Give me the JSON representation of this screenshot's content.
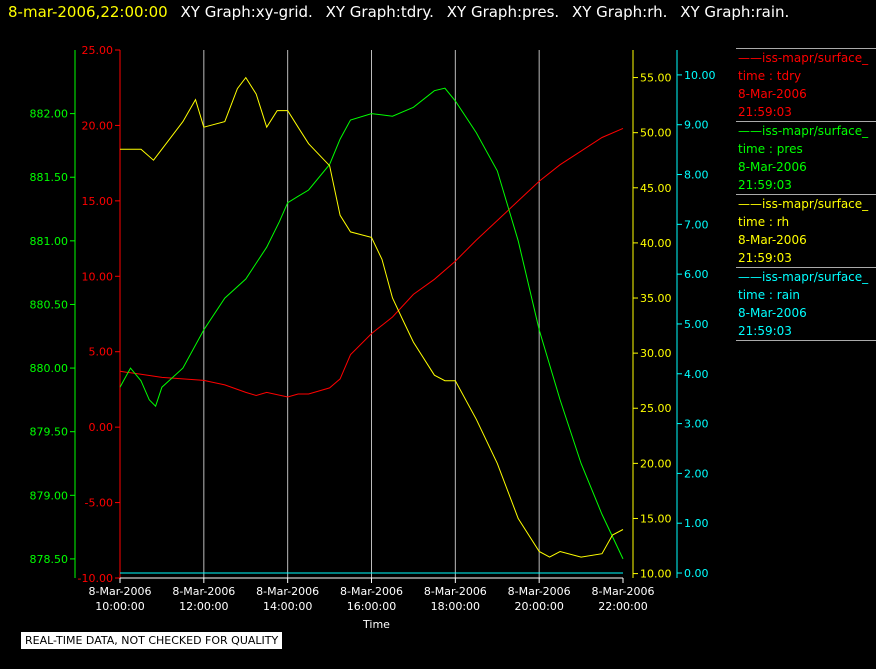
{
  "header": {
    "timestamp": "8-mar-2006,22:00:00",
    "titles": [
      "XY Graph:xy-grid.",
      "XY Graph:tdry.",
      "XY Graph:pres.",
      "XY Graph:rh.",
      "XY Graph:rain."
    ]
  },
  "legend": [
    {
      "name": "iss-mapr/surface_",
      "variable": "time : tdry",
      "date": "8-Mar-2006",
      "time": "21:59:03",
      "color": "#ff0000"
    },
    {
      "name": "iss-mapr/surface_",
      "variable": "time : pres",
      "date": "8-Mar-2006",
      "time": "21:59:03",
      "color": "#00ff00"
    },
    {
      "name": "iss-mapr/surface_",
      "variable": "time : rh",
      "date": "8-Mar-2006",
      "time": "21:59:03",
      "color": "#ffff00"
    },
    {
      "name": "iss-mapr/surface_",
      "variable": "time : rain",
      "date": "8-Mar-2006",
      "time": "21:59:03",
      "color": "#00ffff"
    }
  ],
  "footer": {
    "quality_note": "REAL-TIME DATA, NOT CHECKED FOR QUALITY"
  },
  "chart_data": {
    "type": "line",
    "xlabel": "Time",
    "x_ticks": [
      {
        "date": "8-Mar-2006",
        "time": "10:00:00",
        "hour": 10
      },
      {
        "date": "8-Mar-2006",
        "time": "12:00:00",
        "hour": 12
      },
      {
        "date": "8-Mar-2006",
        "time": "14:00:00",
        "hour": 14
      },
      {
        "date": "8-Mar-2006",
        "time": "16:00:00",
        "hour": 16
      },
      {
        "date": "8-Mar-2006",
        "time": "18:00:00",
        "hour": 18
      },
      {
        "date": "8-Mar-2006",
        "time": "20:00:00",
        "hour": 20
      },
      {
        "date": "8-Mar-2006",
        "time": "22:00:00",
        "hour": 22
      }
    ],
    "xlim_hours": [
      10,
      22
    ],
    "grid_x": true,
    "axes": {
      "tdry": {
        "color": "#ff0000",
        "ylim": [
          -10,
          25
        ],
        "ticks": [
          "25.00",
          "20.00",
          "15.00",
          "10.00",
          "5.00",
          "0.00",
          "-5.00",
          "-10.00"
        ]
      },
      "pres": {
        "color": "#00ff00",
        "ylim": [
          878.35,
          882.5
        ],
        "ticks": [
          "882.00",
          "881.50",
          "881.00",
          "880.50",
          "880.00",
          "879.50",
          "879.00",
          "878.50"
        ]
      },
      "rh": {
        "color": "#ffff00",
        "ylim": [
          9.6,
          57.5
        ],
        "ticks": [
          "55.00",
          "50.00",
          "45.00",
          "40.00",
          "35.00",
          "30.00",
          "25.00",
          "20.00",
          "15.00",
          "10.00"
        ]
      },
      "rain": {
        "color": "#00ffff",
        "ylim": [
          -0.1,
          10.5
        ],
        "ticks": [
          "10.00",
          "9.00",
          "8.00",
          "7.00",
          "6.00",
          "5.00",
          "4.00",
          "3.00",
          "2.00",
          "1.00",
          "0.00"
        ]
      }
    },
    "series": [
      {
        "name": "tdry",
        "axis": "tdry",
        "color": "#ff0000",
        "x": [
          10,
          10.5,
          11,
          11.5,
          12,
          12.5,
          13,
          13.25,
          13.5,
          14,
          14.25,
          14.5,
          15,
          15.25,
          15.5,
          16,
          16.5,
          17,
          17.5,
          18,
          18.5,
          19,
          19.5,
          20,
          20.5,
          21,
          21.5,
          22
        ],
        "y": [
          3.7,
          3.5,
          3.3,
          3.2,
          3.1,
          2.8,
          2.3,
          2.1,
          2.3,
          2.0,
          2.2,
          2.2,
          2.6,
          3.2,
          4.8,
          6.2,
          7.3,
          8.8,
          9.8,
          11.0,
          12.4,
          13.7,
          15.0,
          16.3,
          17.4,
          18.3,
          19.2,
          19.8
        ]
      },
      {
        "name": "pres",
        "axis": "pres",
        "color": "#00ff00",
        "x": [
          10,
          10.25,
          10.5,
          10.7,
          10.85,
          11,
          11.5,
          12,
          12.5,
          13,
          13.5,
          13.8,
          14,
          14.25,
          14.5,
          15,
          15.25,
          15.5,
          16,
          16.5,
          17,
          17.5,
          17.75,
          18,
          18.5,
          19,
          19.5,
          20,
          20.5,
          21,
          21.5,
          22
        ],
        "y": [
          879.85,
          880.0,
          879.9,
          879.75,
          879.7,
          879.85,
          880.0,
          880.3,
          880.55,
          880.7,
          880.95,
          881.15,
          881.3,
          881.35,
          881.4,
          881.6,
          881.8,
          881.95,
          882.0,
          881.98,
          882.05,
          882.18,
          882.2,
          882.1,
          881.85,
          881.55,
          881.0,
          880.3,
          879.75,
          879.25,
          878.85,
          878.5
        ]
      },
      {
        "name": "rh",
        "axis": "rh",
        "color": "#ffff00",
        "x": [
          10,
          10.5,
          10.8,
          11,
          11.5,
          11.8,
          12,
          12.5,
          12.8,
          13,
          13.25,
          13.5,
          13.75,
          14,
          14.25,
          14.5,
          15,
          15.25,
          15.5,
          16,
          16.25,
          16.5,
          16.75,
          17,
          17.5,
          17.75,
          18,
          18.5,
          19,
          19.5,
          20,
          20.25,
          20.5,
          21,
          21.5,
          21.75,
          22
        ],
        "y": [
          48.5,
          48.5,
          47.5,
          48.5,
          51.0,
          53.0,
          50.5,
          51.0,
          54.0,
          55.0,
          53.5,
          50.5,
          52.0,
          52.0,
          50.5,
          49.0,
          47.0,
          42.5,
          41.0,
          40.5,
          38.5,
          35.0,
          33.0,
          31.0,
          28.0,
          27.5,
          27.5,
          24.0,
          20.0,
          15.0,
          12.0,
          11.5,
          12.0,
          11.5,
          11.8,
          13.5,
          14.0
        ]
      },
      {
        "name": "rain",
        "axis": "rain",
        "color": "#00ffff",
        "x": [
          10,
          22
        ],
        "y": [
          0,
          0
        ]
      }
    ]
  }
}
